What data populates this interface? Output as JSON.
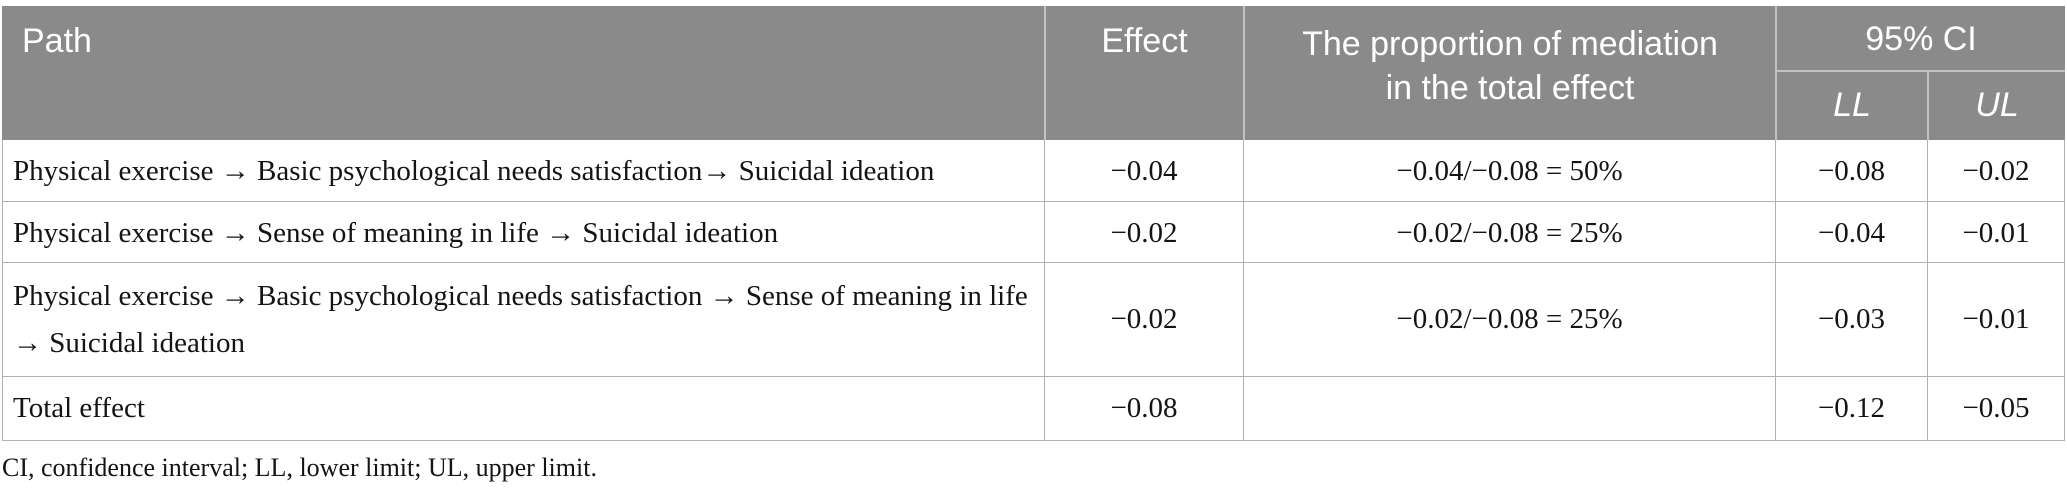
{
  "table": {
    "header": {
      "path": "Path",
      "effect": "Effect",
      "proportion": "The proportion of mediation\nin the total effect",
      "ci": "95% CI",
      "ll": "LL",
      "ul": "UL"
    },
    "rows": [
      {
        "path": "Physical exercise → Basic psychological needs satisfaction→ Suicidal ideation",
        "effect": "−0.04",
        "proportion": "−0.04/−0.08 = 50%",
        "ll": "−0.08",
        "ul": "−0.02"
      },
      {
        "path": "Physical exercise → Sense of meaning in life → Suicidal ideation",
        "effect": "−0.02",
        "proportion": "−0.02/−0.08 = 25%",
        "ll": "−0.04",
        "ul": "−0.01"
      },
      {
        "path": "Physical exercise → Basic psychological needs satisfaction → Sense of meaning in life\n→ Suicidal ideation",
        "effect": "−0.02",
        "proportion": "−0.02/−0.08 = 25%",
        "ll": "−0.03",
        "ul": "−0.01"
      },
      {
        "path": "Total effect",
        "effect": "−0.08",
        "proportion": "",
        "ll": "−0.12",
        "ul": "−0.05"
      }
    ],
    "footnote": "CI, confidence interval; LL, lower limit; UL, upper limit."
  },
  "colors": {
    "header_bg": "#8a8a8a",
    "header_divider": "#c2c2c2",
    "grid_line": "#b0b0b0",
    "header_text": "#ffffff",
    "body_text": "#141414"
  }
}
